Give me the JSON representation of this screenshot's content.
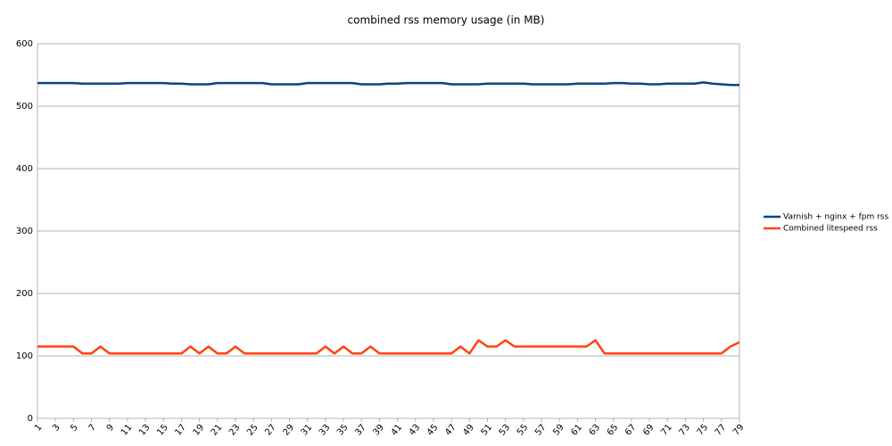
{
  "chart_data": {
    "type": "line",
    "title": "combined rss memory usage (in MB)",
    "x": [
      1,
      2,
      3,
      4,
      5,
      6,
      7,
      8,
      9,
      10,
      11,
      12,
      13,
      14,
      15,
      16,
      17,
      18,
      19,
      20,
      21,
      22,
      23,
      24,
      25,
      26,
      27,
      28,
      29,
      30,
      31,
      32,
      33,
      34,
      35,
      36,
      37,
      38,
      39,
      40,
      41,
      42,
      43,
      44,
      45,
      46,
      47,
      48,
      49,
      50,
      51,
      52,
      53,
      54,
      55,
      56,
      57,
      58,
      59,
      60,
      61,
      62,
      63,
      64,
      65,
      66,
      67,
      68,
      69,
      70,
      71,
      72,
      73,
      74,
      75,
      76,
      77,
      78,
      79
    ],
    "xlim": [
      1,
      79
    ],
    "xticks": [
      1,
      3,
      5,
      7,
      9,
      11,
      13,
      15,
      17,
      19,
      21,
      23,
      25,
      27,
      29,
      31,
      33,
      35,
      37,
      39,
      41,
      43,
      45,
      47,
      49,
      51,
      53,
      55,
      57,
      59,
      61,
      63,
      65,
      67,
      69,
      71,
      73,
      75,
      77,
      79
    ],
    "ylim": [
      0,
      600
    ],
    "yticks": [
      0,
      100,
      200,
      300,
      400,
      500,
      600
    ],
    "grid": true,
    "legend": "right",
    "series": [
      {
        "name": "Varnish + nginx + fpm rss",
        "color": "#004586",
        "values": [
          537,
          537,
          537,
          537,
          537,
          536,
          536,
          536,
          536,
          536,
          537,
          537,
          537,
          537,
          537,
          536,
          536,
          535,
          535,
          535,
          537,
          537,
          537,
          537,
          537,
          537,
          535,
          535,
          535,
          535,
          537,
          537,
          537,
          537,
          537,
          537,
          535,
          535,
          535,
          536,
          536,
          537,
          537,
          537,
          537,
          537,
          535,
          535,
          535,
          535,
          536,
          536,
          536,
          536,
          536,
          535,
          535,
          535,
          535,
          535,
          536,
          536,
          536,
          536,
          537,
          537,
          536,
          536,
          535,
          535,
          536,
          536,
          536,
          536,
          538,
          536,
          535,
          534,
          534
        ]
      },
      {
        "name": "Combined litespeed rss",
        "color": "#ff420e",
        "values": [
          115,
          115,
          115,
          115,
          115,
          104,
          104,
          115,
          104,
          104,
          104,
          104,
          104,
          104,
          104,
          104,
          104,
          115,
          104,
          115,
          104,
          104,
          115,
          104,
          104,
          104,
          104,
          104,
          104,
          104,
          104,
          104,
          115,
          104,
          115,
          104,
          104,
          115,
          104,
          104,
          104,
          104,
          104,
          104,
          104,
          104,
          104,
          115,
          104,
          125,
          115,
          115,
          125,
          115,
          115,
          115,
          115,
          115,
          115,
          115,
          115,
          115,
          125,
          104,
          104,
          104,
          104,
          104,
          104,
          104,
          104,
          104,
          104,
          104,
          104,
          104,
          104,
          115,
          122
        ]
      }
    ]
  }
}
